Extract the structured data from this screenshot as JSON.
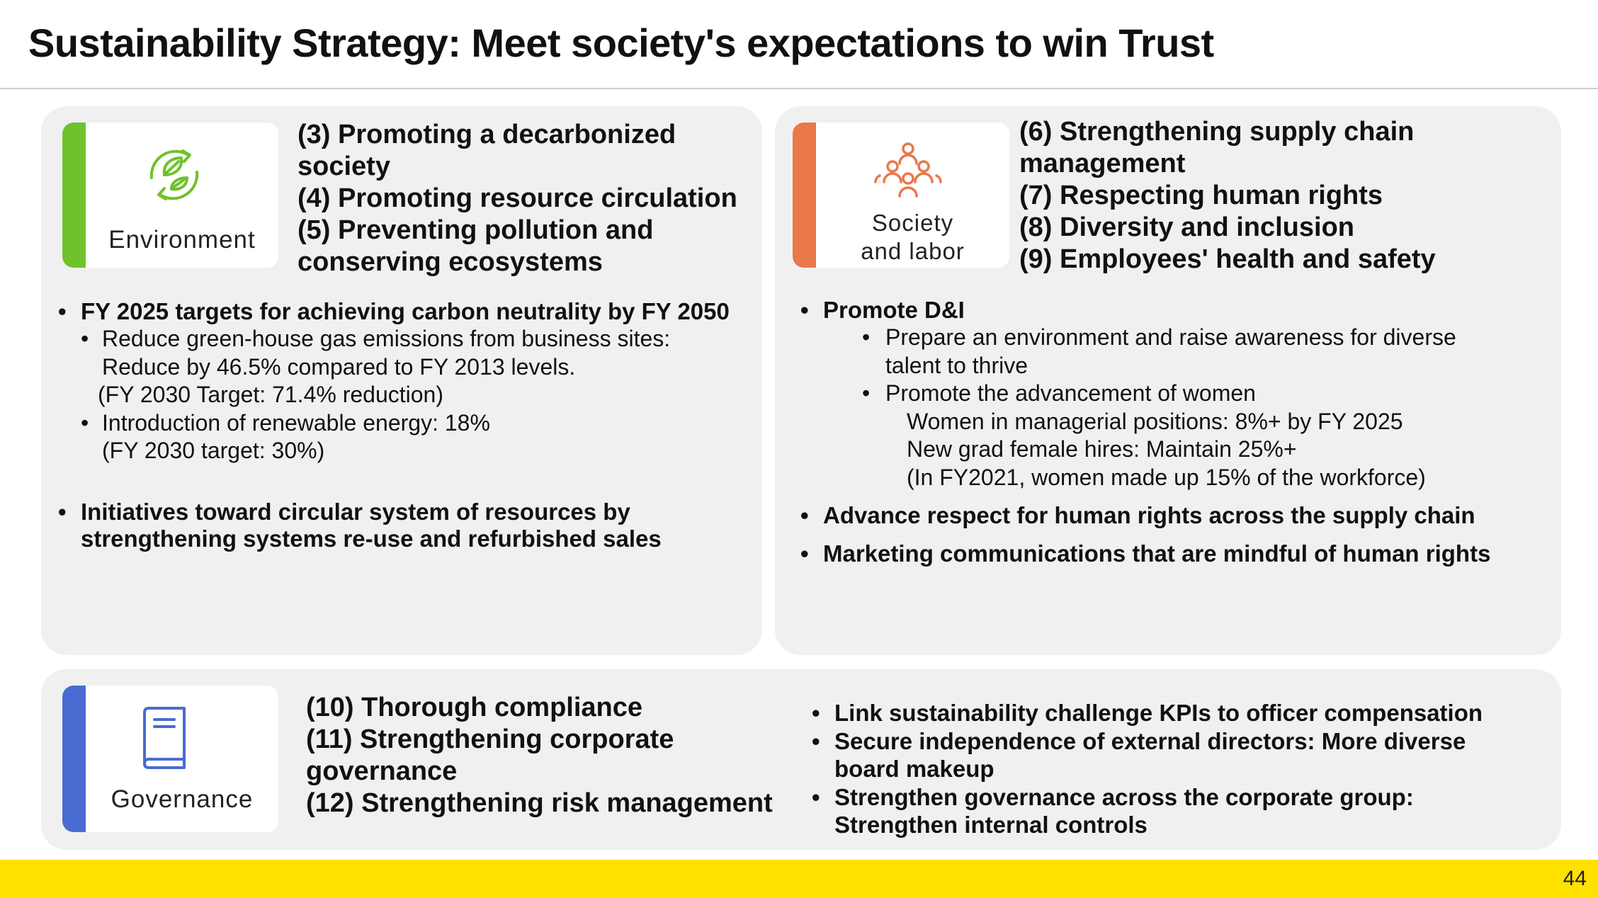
{
  "title": "Sustainability Strategy: Meet society's expectations to win Trust",
  "colors": {
    "environment": "#6fc22b",
    "society": "#e9784a",
    "governance": "#4a6bd1",
    "footer": "#ffe100"
  },
  "environment": {
    "label": "Environment",
    "icon": "leaf-cycle-icon",
    "themes": [
      "(3) Promoting a decarbonized",
      "society",
      "(4) Promoting resource circulation",
      "(5) Preventing pollution and",
      "conserving ecosystems"
    ],
    "bullets": [
      {
        "text": "FY 2025 targets for achieving carbon neutrality by FY 2050",
        "sub": [
          {
            "lines": [
              "Reduce green-house gas emissions from business sites:",
              "Reduce by 46.5% compared to FY 2013 levels."
            ],
            "note": "(FY 2030 Target: 71.4% reduction)"
          },
          {
            "lines": [
              "Introduction of renewable energy: 18%"
            ],
            "note": "(FY 2030 target: 30%)"
          }
        ]
      },
      {
        "lines": [
          "Initiatives toward circular system of resources by",
          "strengthening systems re-use and refurbished sales"
        ]
      }
    ]
  },
  "society": {
    "label_lines": [
      "Society",
      "and labor"
    ],
    "icon": "people-group-icon",
    "themes": [
      "(6) Strengthening supply chain",
      "management",
      "(7) Respecting human rights",
      "(8) Diversity and inclusion",
      "(9) Employees' health and safety"
    ],
    "bullets": [
      {
        "text": "Promote D&I",
        "sub": [
          {
            "lines": [
              "Prepare an environment and raise awareness for diverse",
              "talent to thrive"
            ]
          },
          {
            "lines": [
              "Promote the advancement of women"
            ],
            "details": [
              "Women in managerial positions: 8%+ by FY 2025",
              "New grad female hires: Maintain 25%+",
              "(In FY2021, women made up 15% of the workforce)"
            ]
          }
        ]
      },
      {
        "text": "Advance respect for human rights across the supply chain"
      },
      {
        "text": "Marketing communications that are mindful of human rights"
      }
    ]
  },
  "governance": {
    "label": "Governance",
    "icon": "book-icon",
    "themes": [
      "(10) Thorough compliance",
      "(11) Strengthening corporate",
      "governance",
      "(12) Strengthening risk management"
    ],
    "bullets": [
      {
        "lines": [
          "Link sustainability challenge KPIs to officer compensation"
        ]
      },
      {
        "lines": [
          "Secure independence of external directors: More diverse",
          "board makeup"
        ]
      },
      {
        "lines": [
          "Strengthen governance across the corporate group:",
          "Strengthen internal controls"
        ]
      }
    ]
  },
  "page_number": "44"
}
